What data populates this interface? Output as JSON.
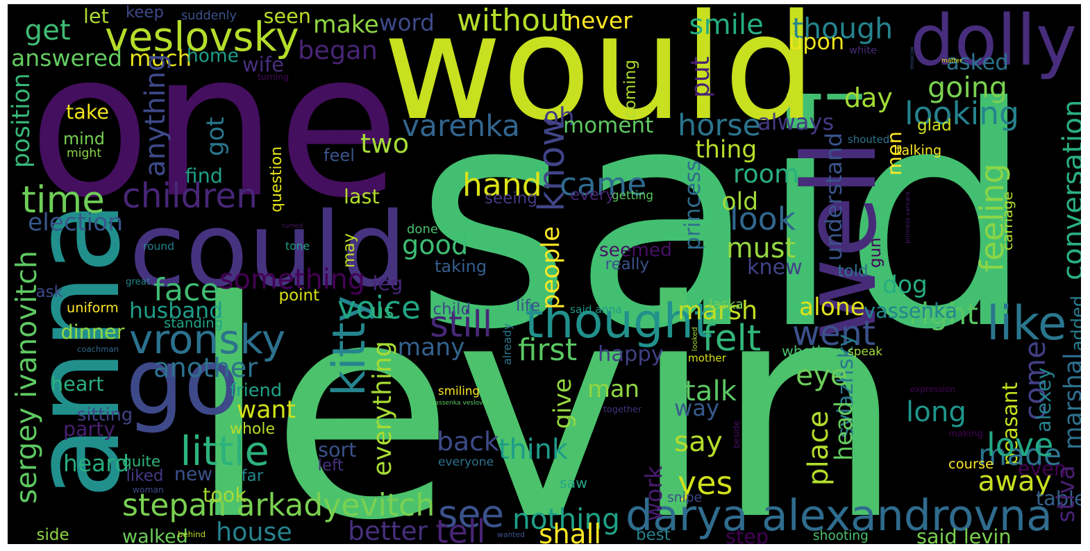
{
  "palette": {
    "background": "#000000",
    "viridis_colors": [
      "#440154",
      "#46327e",
      "#365c8d",
      "#277f8e",
      "#1fa187",
      "#4ac16d",
      "#a0da39",
      "#cce51d",
      "#fde725"
    ]
  },
  "words": [
    {
      "text": "said",
      "color": "#43bf71"
    },
    {
      "text": "levin",
      "color": "#4cc26c"
    },
    {
      "text": "one",
      "color": "#440f5e"
    },
    {
      "text": "would",
      "color": "#c8e020"
    },
    {
      "text": "anna",
      "color": "#21908d"
    },
    {
      "text": "could",
      "color": "#46337f"
    },
    {
      "text": "go",
      "color": "#3e4989"
    },
    {
      "text": "dolly",
      "color": "#472d7b"
    },
    {
      "text": "well",
      "color": "#472c7a"
    },
    {
      "text": "i",
      "color": "#42be71"
    },
    {
      "text": "vronsky",
      "color": "#2c718e"
    },
    {
      "text": "kitty",
      "color": "#25858e"
    },
    {
      "text": "darya alexandrovna",
      "color": "#2f6c8e"
    },
    {
      "text": "veslovsky",
      "color": "#b5de2b"
    },
    {
      "text": "thought",
      "color": "#21918c"
    },
    {
      "text": "stepan arkadyevitch",
      "color": "#7ad151"
    },
    {
      "text": "sergey ivanovitch",
      "color": "#5ec962"
    },
    {
      "text": "went",
      "color": "#3b518b"
    },
    {
      "text": "like",
      "color": "#2a768e"
    },
    {
      "text": "come",
      "color": "#433e85"
    },
    {
      "text": "see",
      "color": "#3b528b"
    },
    {
      "text": "time",
      "color": "#6ece58"
    },
    {
      "text": "know",
      "color": "#414487"
    },
    {
      "text": "children",
      "color": "#482677"
    },
    {
      "text": "little",
      "color": "#2db27d"
    },
    {
      "text": "without",
      "color": "#b5de2b"
    },
    {
      "text": "never",
      "color": "#fde725"
    },
    {
      "text": "face",
      "color": "#3fbc73"
    },
    {
      "text": "something",
      "color": "#440154"
    },
    {
      "text": "husband",
      "color": "#1f9e89"
    },
    {
      "text": "marsh",
      "color": "#c0df25"
    },
    {
      "text": "conversation",
      "color": "#2ab07f"
    },
    {
      "text": "marshal",
      "color": "#2d708e"
    },
    {
      "text": "feeling",
      "color": "#8bd646"
    },
    {
      "text": "varenka",
      "color": "#32658e"
    },
    {
      "text": "looking",
      "color": "#25838e"
    },
    {
      "text": "sviazhsky",
      "color": "#29798e"
    },
    {
      "text": "nothing",
      "color": "#1fa188"
    },
    {
      "text": "house",
      "color": "#26828e"
    },
    {
      "text": "still",
      "color": "#482878"
    },
    {
      "text": "voice",
      "color": "#21a685"
    },
    {
      "text": "hand",
      "color": "#dde318"
    },
    {
      "text": "good",
      "color": "#3dbc74"
    },
    {
      "text": "must",
      "color": "#95d840"
    },
    {
      "text": "right",
      "color": "#58c765"
    },
    {
      "text": "felt",
      "color": "#32b67a"
    },
    {
      "text": "everything",
      "color": "#a8db34"
    },
    {
      "text": "think",
      "color": "#1e9b8a"
    },
    {
      "text": "another",
      "color": "#2d718e"
    },
    {
      "text": "question",
      "color": "#e5e419"
    },
    {
      "text": "heard",
      "color": "#27ad81"
    },
    {
      "text": "new",
      "color": "#3b528b"
    },
    {
      "text": "want",
      "color": "#d2e21b"
    },
    {
      "text": "saw",
      "color": "#22a785"
    },
    {
      "text": "better",
      "color": "#462f7c"
    },
    {
      "text": "tell",
      "color": "#482475"
    },
    {
      "text": "shall",
      "color": "#fde725"
    },
    {
      "text": "place",
      "color": "#b2dd2d"
    },
    {
      "text": "peasant",
      "color": "#c5e021"
    },
    {
      "text": "horse",
      "color": "#2b758e"
    },
    {
      "text": "room",
      "color": "#29af7f"
    },
    {
      "text": "look",
      "color": "#31678e"
    },
    {
      "text": "made",
      "color": "#2c738e"
    },
    {
      "text": "love",
      "color": "#22a884"
    },
    {
      "text": "even",
      "color": "#440154"
    },
    {
      "text": "away",
      "color": "#c8e020"
    },
    {
      "text": "long",
      "color": "#1f968b"
    },
    {
      "text": "eye",
      "color": "#6ccd5a"
    },
    {
      "text": "talk",
      "color": "#5cc863"
    },
    {
      "text": "say",
      "color": "#b5de2b"
    },
    {
      "text": "way",
      "color": "#375b8d"
    },
    {
      "text": "work",
      "color": "#481b6d"
    },
    {
      "text": "yes",
      "color": "#d0e11c"
    },
    {
      "text": "back",
      "color": "#3e4a89"
    },
    {
      "text": "man",
      "color": "#90d743"
    },
    {
      "text": "happy",
      "color": "#423f85"
    },
    {
      "text": "first",
      "color": "#5ac864"
    },
    {
      "text": "alone",
      "color": "#dfe318"
    },
    {
      "text": "vassenka",
      "color": "#24868e"
    },
    {
      "text": "make",
      "color": "#8fd744"
    },
    {
      "text": "word",
      "color": "#3e4a89"
    },
    {
      "text": "smile",
      "color": "#26ad81"
    },
    {
      "text": "though",
      "color": "#25848e"
    },
    {
      "text": "asked",
      "color": "#2b748e"
    },
    {
      "text": "going",
      "color": "#7ad151"
    },
    {
      "text": "day",
      "color": "#a2da37"
    },
    {
      "text": "get",
      "color": "#3fbc73"
    },
    {
      "text": "answered",
      "color": "#63cb5f"
    },
    {
      "text": "much",
      "color": "#e7e419"
    },
    {
      "text": "began",
      "color": "#482576"
    },
    {
      "text": "wife",
      "color": "#472f7d"
    },
    {
      "text": "home",
      "color": "#1f9e89"
    },
    {
      "text": "upon",
      "color": "#ece51b"
    },
    {
      "text": "two",
      "color": "#a5db36"
    },
    {
      "text": "oh",
      "color": "#433e85"
    },
    {
      "text": "moment",
      "color": "#5ec962"
    },
    {
      "text": "thing",
      "color": "#b8de29"
    },
    {
      "text": "always",
      "color": "#443a83"
    },
    {
      "text": "coming",
      "color": "#addc30"
    },
    {
      "text": "put",
      "color": "#482173"
    },
    {
      "text": "came",
      "color": "#2f6c8e"
    },
    {
      "text": "anything",
      "color": "#3e4989"
    },
    {
      "text": "got",
      "color": "#2a788e"
    },
    {
      "text": "position",
      "color": "#37b878"
    },
    {
      "text": "princess",
      "color": "#2e6e8e"
    },
    {
      "text": "understand",
      "color": "#3a538b"
    },
    {
      "text": "election",
      "color": "#38588c"
    },
    {
      "text": "people",
      "color": "#fde725"
    },
    {
      "text": "knew",
      "color": "#414287"
    },
    {
      "text": "old",
      "color": "#a2da37"
    },
    {
      "text": "seemed",
      "color": "#471164"
    },
    {
      "text": "laska",
      "color": "#73d056"
    },
    {
      "text": "dog",
      "color": "#27ad81"
    },
    {
      "text": "many",
      "color": "#34618d"
    },
    {
      "text": "looked",
      "color": "#9fda3a"
    },
    {
      "text": "us",
      "color": "#31b57b"
    },
    {
      "text": "mind",
      "color": "#77d153"
    },
    {
      "text": "take",
      "color": "#f1e51d"
    },
    {
      "text": "might",
      "color": "#8bd646"
    },
    {
      "text": "find",
      "color": "#1fa088"
    },
    {
      "text": "feel",
      "color": "#3a548c"
    },
    {
      "text": "last",
      "color": "#b2dd2d"
    },
    {
      "text": "taking",
      "color": "#355f8d"
    },
    {
      "text": "round",
      "color": "#26818e"
    },
    {
      "text": "done",
      "color": "#4ac16d"
    },
    {
      "text": "tone",
      "color": "#1fa088"
    },
    {
      "text": "may",
      "color": "#c2df23"
    },
    {
      "text": "turned",
      "color": "#481467"
    },
    {
      "text": "leg",
      "color": "#482677"
    },
    {
      "text": "great",
      "color": "#25858e"
    },
    {
      "text": "ask",
      "color": "#3e4989"
    },
    {
      "text": "point",
      "color": "#d8e219"
    },
    {
      "text": "uniform",
      "color": "#fde725"
    },
    {
      "text": "dinner",
      "color": "#90d743"
    },
    {
      "text": "standing",
      "color": "#20a486"
    },
    {
      "text": "coachman",
      "color": "#31688e"
    },
    {
      "text": "heart",
      "color": "#2ab07f"
    },
    {
      "text": "sitting",
      "color": "#404588"
    },
    {
      "text": "party",
      "color": "#482071"
    },
    {
      "text": "friend",
      "color": "#1fa287"
    },
    {
      "text": "whole",
      "color": "#b8de29"
    },
    {
      "text": "quite",
      "color": "#31b57b"
    },
    {
      "text": "liked",
      "color": "#443a83"
    },
    {
      "text": "woman",
      "color": "#3e4a89"
    },
    {
      "text": "sort",
      "color": "#3b528b"
    },
    {
      "text": "left",
      "color": "#46327e"
    },
    {
      "text": "far",
      "color": "#24878e"
    },
    {
      "text": "took",
      "color": "#a8db34"
    },
    {
      "text": "side",
      "color": "#8fd744"
    },
    {
      "text": "walked",
      "color": "#6ccd5a"
    },
    {
      "text": "behind",
      "color": "#bade28"
    },
    {
      "text": "wanted",
      "color": "#3b528b"
    },
    {
      "text": "best",
      "color": "#25848e"
    },
    {
      "text": "step",
      "color": "#440154"
    },
    {
      "text": "shooting",
      "color": "#4ac16d"
    },
    {
      "text": "said levin",
      "color": "#7ad151"
    },
    {
      "text": "smiling",
      "color": "#fde725"
    },
    {
      "text": "vassenka veslovsky",
      "color": "#5ec962"
    },
    {
      "text": "give",
      "color": "#95d840"
    },
    {
      "text": "everyone",
      "color": "#2c728e"
    },
    {
      "text": "together",
      "color": "#46337f"
    },
    {
      "text": "already",
      "color": "#2a778e"
    },
    {
      "text": "child",
      "color": "#3e4989"
    },
    {
      "text": "life",
      "color": "#3b528b"
    },
    {
      "text": "said anna",
      "color": "#1f9a8a"
    },
    {
      "text": "mother",
      "color": "#d8e219"
    },
    {
      "text": "whether",
      "color": "#4ac16d"
    },
    {
      "text": "speak",
      "color": "#a0da39"
    },
    {
      "text": "really",
      "color": "#3b528b"
    },
    {
      "text": "told",
      "color": "#2d718e"
    },
    {
      "text": "alexey",
      "color": "#26828e"
    },
    {
      "text": "added",
      "color": "#287d8e"
    },
    {
      "text": "expression",
      "color": "#450559"
    },
    {
      "text": "making",
      "color": "#440154"
    },
    {
      "text": "course",
      "color": "#fde725"
    },
    {
      "text": "table",
      "color": "#34618d"
    },
    {
      "text": "snipe",
      "color": "#3e4a89"
    },
    {
      "text": "beside",
      "color": "#471063"
    },
    {
      "text": "head",
      "color": "#65cb5e"
    },
    {
      "text": "stiva",
      "color": "#482071"
    },
    {
      "text": "princess varvara",
      "color": "#481a6c"
    },
    {
      "text": "carriage",
      "color": "#addc30"
    },
    {
      "text": "shouted",
      "color": "#2c738e"
    },
    {
      "text": "talking",
      "color": "#fde725"
    },
    {
      "text": "glad",
      "color": "#cde11d"
    },
    {
      "text": "moscow",
      "color": "#3b528b"
    },
    {
      "text": "matter",
      "color": "#f1e51d"
    },
    {
      "text": "gun",
      "color": "#440154"
    },
    {
      "text": "men",
      "color": "#fde725"
    },
    {
      "text": "every",
      "color": "#482475"
    },
    {
      "text": "getting",
      "color": "#5ec962"
    },
    {
      "text": "seeing",
      "color": "#443b84"
    },
    {
      "text": "white",
      "color": "#472d7b"
    },
    {
      "text": "turning",
      "color": "#460a5d"
    },
    {
      "text": "let",
      "color": "#addc30"
    },
    {
      "text": "keep",
      "color": "#3e4989"
    },
    {
      "text": "suddenly",
      "color": "#3b528b"
    },
    {
      "text": "seen",
      "color": "#bade28"
    },
    {
      "text": "towards",
      "color": "#2c728e"
    },
    {
      "text": "please",
      "color": "#4ac16d"
    }
  ]
}
